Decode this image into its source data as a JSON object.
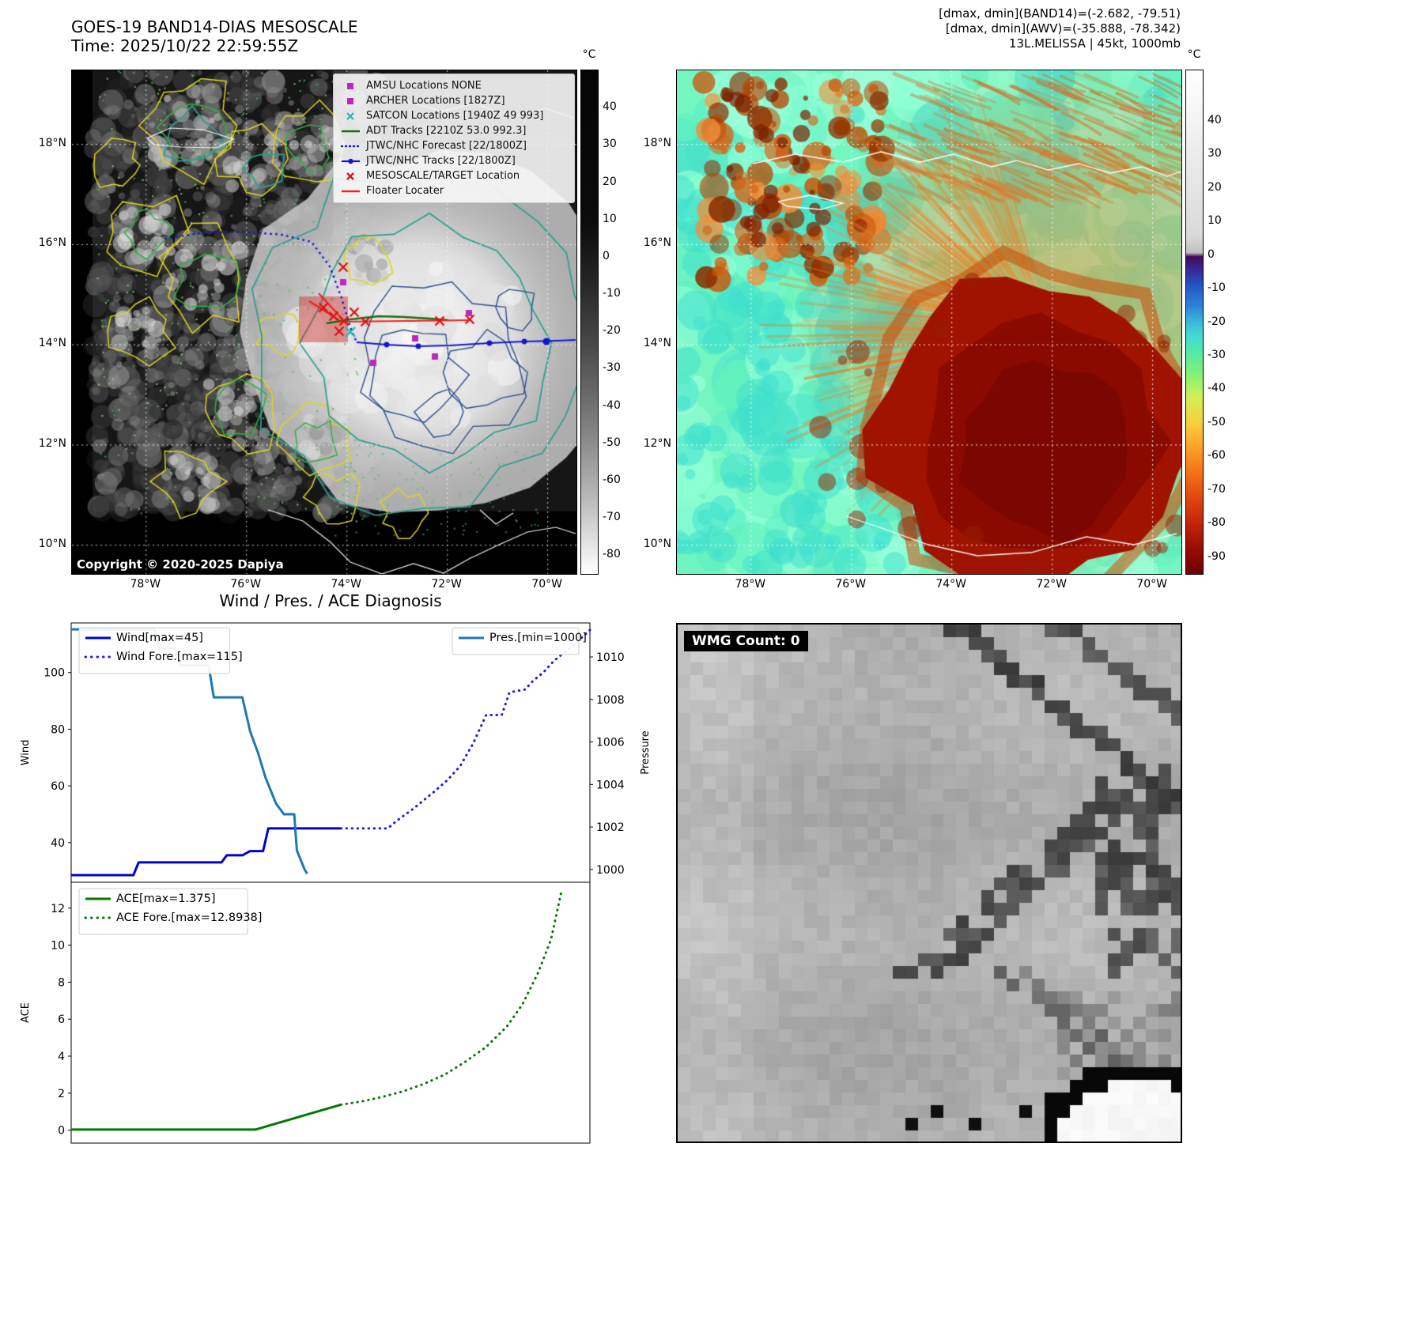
{
  "panel_band14": {
    "title": "GOES-19 BAND14-DIAS MESOSCALE",
    "subtitle": "Time: 2025/10/22 22:59:55Z",
    "copyright": "Copyright © 2020-2025 Dapiya",
    "legend": [
      {
        "label": "AMSU Locations NONE",
        "marker": "square",
        "color": "#bf25bf"
      },
      {
        "label": "ARCHER Locations [1827Z]",
        "marker": "square",
        "color": "#bf25bf"
      },
      {
        "label": "SATCON Locations [1940Z 49 993]",
        "marker": "x",
        "color": "#1cb8b8"
      },
      {
        "label": "ADT Tracks [2210Z 53.0 992.3]",
        "marker": "line",
        "color": "#156e15"
      },
      {
        "label": "JTWC/NHC Forecast [22/1800Z]",
        "marker": "dotted",
        "color": "#1414d2"
      },
      {
        "label": "JTWC/NHC Tracks [22/1800Z]",
        "marker": "line-dot",
        "color": "#1414d2"
      },
      {
        "label": "MESOSCALE/TARGET Location",
        "marker": "x",
        "color": "#e01212"
      },
      {
        "label": "Floater Locater",
        "marker": "line",
        "color": "#ef2121"
      }
    ],
    "lat_ticks": [
      "18°N",
      "16°N",
      "14°N",
      "12°N",
      "10°N"
    ],
    "lon_ticks": [
      "78°W",
      "76°W",
      "74°W",
      "72°W",
      "70°W"
    ],
    "colorbar": {
      "unit": "°C",
      "ticks": [
        40,
        30,
        20,
        10,
        0,
        -10,
        -20,
        -30,
        -40,
        -50,
        -60,
        -70,
        -80
      ],
      "vmax": 50,
      "vmin": -85,
      "stops": [
        {
          "at": 0,
          "color": "#050505"
        },
        {
          "at": 0.3,
          "color": "#0b0b0b"
        },
        {
          "at": 0.42,
          "color": "#262626"
        },
        {
          "at": 0.55,
          "color": "#4a4a4a"
        },
        {
          "at": 0.7,
          "color": "#7d7d7d"
        },
        {
          "at": 0.85,
          "color": "#b9b9b9"
        },
        {
          "at": 1,
          "color": "#ffffff"
        }
      ]
    }
  },
  "panel_awv": {
    "header_lines": [
      "[dmax, dmin](BAND14)=(-2.682, -79.51)",
      "[dmax, dmin](AWV)=(-35.888, -78.342)",
      "13L.MELISSA | 45kt, 1000mb"
    ],
    "lat_ticks": [
      "18°N",
      "16°N",
      "14°N",
      "12°N",
      "10°N"
    ],
    "lon_ticks": [
      "78°W",
      "76°W",
      "74°W",
      "72°W",
      "70°W"
    ],
    "colorbar": {
      "unit": "°C",
      "ticks": [
        40,
        30,
        20,
        10,
        0,
        -10,
        -20,
        -30,
        -40,
        -50,
        -60,
        -70,
        -80,
        -90
      ],
      "vmax": 55,
      "vmin": -95,
      "stops": [
        {
          "at": 0,
          "color": "#ffffff"
        },
        {
          "at": 0.33,
          "color": "#d9d9d9"
        },
        {
          "at": 0.362,
          "color": "#bfbfbf"
        },
        {
          "at": 0.37,
          "color": "#46085c"
        },
        {
          "at": 0.4,
          "color": "#33309b"
        },
        {
          "at": 0.43,
          "color": "#2458c8"
        },
        {
          "at": 0.47,
          "color": "#2f86d8"
        },
        {
          "at": 0.5,
          "color": "#3ab8dd"
        },
        {
          "at": 0.53,
          "color": "#43ddd0"
        },
        {
          "at": 0.57,
          "color": "#5deb9a"
        },
        {
          "at": 0.61,
          "color": "#8ef06e"
        },
        {
          "at": 0.65,
          "color": "#d3ef57"
        },
        {
          "at": 0.7,
          "color": "#f8cf3e"
        },
        {
          "at": 0.75,
          "color": "#fb9f28"
        },
        {
          "at": 0.8,
          "color": "#f4711a"
        },
        {
          "at": 0.85,
          "color": "#e0460e"
        },
        {
          "at": 0.9,
          "color": "#c22408"
        },
        {
          "at": 0.95,
          "color": "#970e03"
        },
        {
          "at": 1,
          "color": "#6e0000"
        }
      ]
    }
  },
  "chart_data": [
    {
      "type": "line",
      "title": "Wind / Pres. / ACE Diagnosis",
      "x_lim": [
        0,
        1
      ],
      "axes": {
        "left": {
          "label": "Wind",
          "lim": [
            26,
            117.5
          ],
          "ticks": [
            40,
            60,
            80,
            100
          ]
        },
        "right": {
          "label": "Pressure",
          "lim": [
            999.4,
            1011.6
          ],
          "ticks": [
            1000,
            1002,
            1004,
            1006,
            1008,
            1010
          ]
        }
      },
      "series": [
        {
          "name": "Wind[max=45]",
          "axis": "left",
          "style": "solid",
          "color": "#0202cf",
          "width": 3,
          "x": [
            0,
            0.12,
            0.13,
            0.29,
            0.3,
            0.33,
            0.345,
            0.37,
            0.38,
            0.52
          ],
          "y": [
            28.5,
            28.5,
            33,
            33,
            35.5,
            35.5,
            37,
            37,
            45,
            45
          ]
        },
        {
          "name": "Wind Fore.[max=115]",
          "axis": "left",
          "style": "dotted",
          "color": "#1a1af0",
          "width": 3,
          "x": [
            0.52,
            0.61,
            0.63,
            0.66,
            0.68,
            0.7,
            0.725,
            0.75,
            0.775,
            0.8,
            0.83,
            0.845,
            0.875,
            0.89,
            0.91,
            0.93,
            0.95,
            0.97,
            1.0
          ],
          "y": [
            45,
            45,
            48,
            52,
            55,
            58,
            62,
            67,
            75,
            85,
            85,
            93,
            94,
            97,
            100,
            104,
            107,
            110,
            115
          ]
        },
        {
          "name": "Pres.[min=1000]",
          "axis": "right",
          "style": "solid",
          "color": "#1f77b4",
          "width": 3,
          "x": [
            0,
            0.16,
            0.17,
            0.2,
            0.21,
            0.265,
            0.275,
            0.33,
            0.345,
            0.36,
            0.375,
            0.395,
            0.41,
            0.43,
            0.435,
            0.45,
            0.455
          ],
          "y": [
            1011.3,
            1011.3,
            1010.4,
            1010.4,
            1009.6,
            1009.6,
            1008.1,
            1008.1,
            1006.5,
            1005.5,
            1004.3,
            1003.1,
            1002.6,
            1002.6,
            1000.9,
            1000.0,
            999.8
          ]
        }
      ],
      "legends": {
        "left": [
          "Wind[max=45]",
          "Wind Fore.[max=115]"
        ],
        "right": [
          "Pres.[min=1000]"
        ]
      }
    },
    {
      "type": "line",
      "title": "",
      "x_lim": [
        0,
        1
      ],
      "axes": {
        "left": {
          "label": "ACE",
          "lim": [
            -0.7,
            13.4
          ],
          "ticks": [
            0,
            2,
            4,
            6,
            8,
            10,
            12
          ]
        }
      },
      "series": [
        {
          "name": "ACE[max=1.375]",
          "axis": "left",
          "style": "solid",
          "color": "#047804",
          "width": 3,
          "x": [
            0,
            0.355,
            0.52
          ],
          "y": [
            0.03,
            0.03,
            1.375
          ]
        },
        {
          "name": "ACE Fore.[max=12.8938]",
          "axis": "left",
          "style": "dotted",
          "color": "#047804",
          "width": 3,
          "x": [
            0.52,
            0.56,
            0.6,
            0.64,
            0.68,
            0.72,
            0.76,
            0.8,
            0.84,
            0.87,
            0.9,
            0.925,
            0.945
          ],
          "y": [
            1.375,
            1.55,
            1.8,
            2.1,
            2.5,
            3.0,
            3.7,
            4.5,
            5.6,
            6.8,
            8.5,
            10.3,
            12.89
          ]
        }
      ],
      "legends": {
        "left": [
          "ACE[max=1.375]",
          "ACE Fore.[max=12.8938]"
        ]
      }
    }
  ],
  "panel_wmg": {
    "label": "WMG Count: 0"
  }
}
